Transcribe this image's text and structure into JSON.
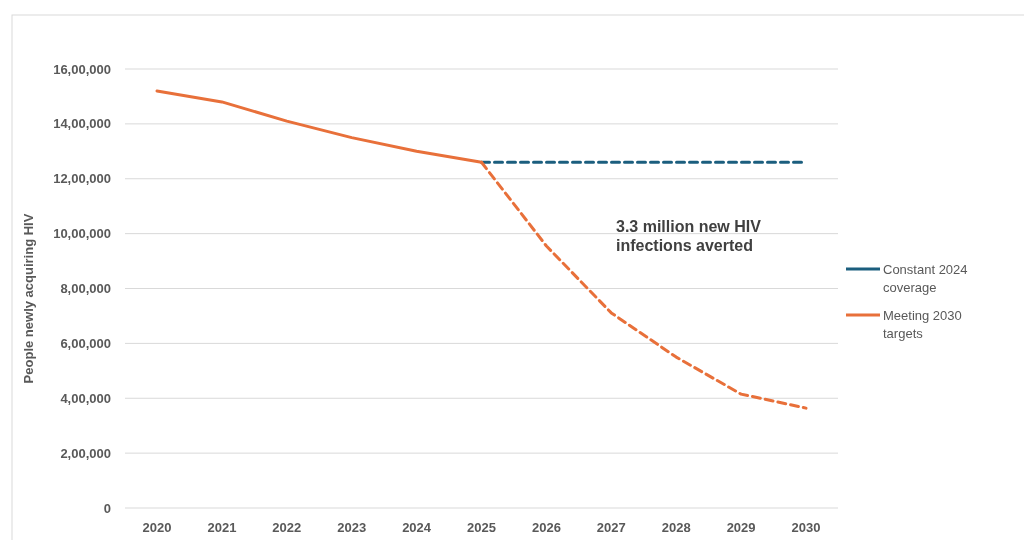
{
  "chart_data": {
    "type": "line",
    "ylabel": "People newly acquiring HIV",
    "categories": [
      "2020",
      "2021",
      "2022",
      "2023",
      "2024",
      "2025",
      "2026",
      "2027",
      "2028",
      "2029",
      "2030"
    ],
    "series": [
      {
        "name": "Constant 2024 coverage",
        "color": "#1b5e7e",
        "line_style": "dashed",
        "values": [
          null,
          null,
          null,
          null,
          null,
          1260000,
          1260000,
          1260000,
          1260000,
          1260000,
          1260000
        ]
      },
      {
        "name": "Meeting 2030 targets",
        "color": "#e8703a",
        "line_style": "solid",
        "values": [
          1520000,
          1480000,
          1410000,
          1350000,
          1300000,
          1260000,
          null,
          null,
          null,
          null,
          null
        ]
      },
      {
        "color": "#e8703a",
        "line_style": "dashed",
        "values": [
          null,
          null,
          null,
          null,
          null,
          1260000,
          955000,
          711000,
          550000,
          415000,
          364000
        ]
      }
    ],
    "ylim": [
      0,
      1600000
    ],
    "yticks": [
      0,
      {
        "value": 200000,
        "label": "2,00,000"
      },
      {
        "value": 400000,
        "label": "4,00,000"
      },
      {
        "value": 600000,
        "label": "6,00,000"
      },
      {
        "value": 800000,
        "label": "8,00,000"
      },
      {
        "value": 1000000,
        "label": "10,00,000"
      },
      {
        "value": 1200000,
        "label": "12,00,000"
      },
      {
        "value": 1400000,
        "label": "14,00,000"
      },
      {
        "value": 1600000,
        "label": "16,00,000"
      }
    ],
    "grid": "y",
    "legend": "right",
    "marker": "none",
    "annotations": [
      "3.3 million new HIV infections averted"
    ]
  }
}
